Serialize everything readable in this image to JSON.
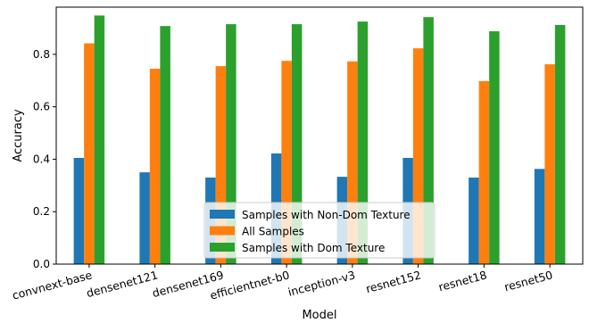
{
  "chart_data": {
    "type": "bar",
    "title": "",
    "xlabel": "Model",
    "ylabel": "Accuracy",
    "ylim": [
      0,
      0.98
    ],
    "yticks": [
      "0.0",
      "0.2",
      "0.4",
      "0.6",
      "0.8"
    ],
    "grid": false,
    "legend_position": "lower-center",
    "categories": [
      "convnext-base",
      "densenet121",
      "densenet169",
      "efficientnet-b0",
      "inception-v3",
      "resnet152",
      "resnet18",
      "resnet50"
    ],
    "series": [
      {
        "name": "Samples with Non-Dom Texture",
        "color": "#1f77b4",
        "values": [
          0.405,
          0.35,
          0.33,
          0.422,
          0.333,
          0.405,
          0.33,
          0.363
        ]
      },
      {
        "name": "All Samples",
        "color": "#ff7f0e",
        "values": [
          0.842,
          0.745,
          0.755,
          0.775,
          0.773,
          0.823,
          0.698,
          0.762
        ]
      },
      {
        "name": "Samples with Dom Texture",
        "color": "#2ca02c",
        "values": [
          0.948,
          0.908,
          0.915,
          0.915,
          0.925,
          0.942,
          0.888,
          0.912
        ]
      }
    ]
  }
}
